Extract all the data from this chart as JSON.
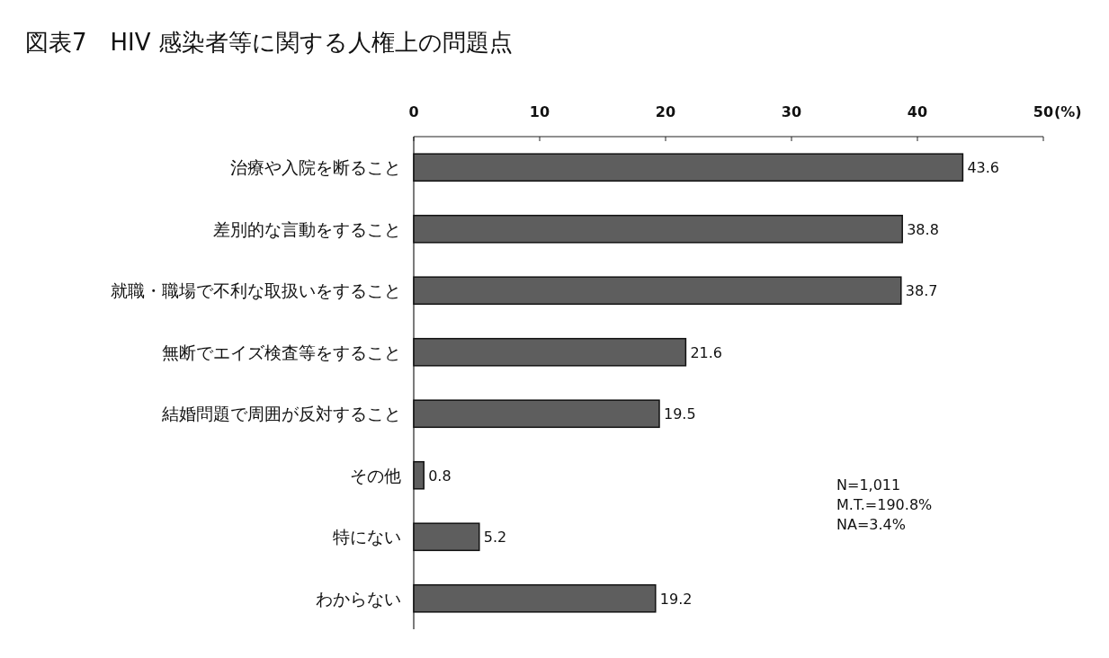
{
  "chart_data": {
    "type": "bar",
    "orientation": "horizontal",
    "title": "図表7　HIV 感染者等に関する人権上の問題点",
    "xlabel": "(%)",
    "categories": [
      "治療や入院を断ること",
      "差別的な言動をすること",
      "就職・職場で不利な取扱いをすること",
      "無断でエイズ検査等をすること",
      "結婚問題で周囲が反対すること",
      "その他",
      "特にない",
      "わからない"
    ],
    "values": [
      43.6,
      38.8,
      38.7,
      21.6,
      19.5,
      0.8,
      5.2,
      19.2
    ],
    "color": "#5e5e5e",
    "xlim": [
      0,
      50
    ],
    "xticks": [
      0,
      10,
      20,
      30,
      40,
      50
    ],
    "data_labels": true,
    "grid": false,
    "annotations": [
      "N=1,011",
      "M.T.=190.8%",
      "NA=3.4%"
    ]
  }
}
